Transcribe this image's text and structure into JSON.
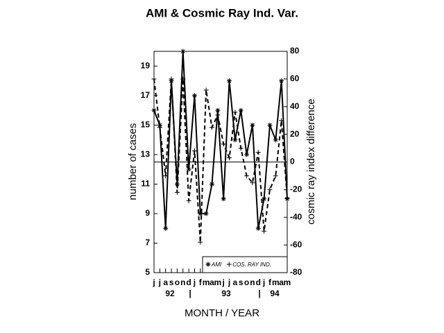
{
  "chart_data": {
    "type": "line",
    "title": "AMI & Cosmic Ray Ind. Var.",
    "x_label": "MONTH / YEAR",
    "y_label": "number of cases",
    "y2_label": "cosmic ray index difference",
    "categories": [
      "j",
      "j",
      "a",
      "s",
      "o",
      "n",
      "d",
      "j",
      "f",
      "m",
      "a",
      "m",
      "j",
      "j",
      "a",
      "s",
      "o",
      "n",
      "d",
      "j",
      "f",
      "m",
      "a",
      "m"
    ],
    "year_labels": [
      "92",
      "93",
      "94"
    ],
    "series": [
      {
        "name": "AMI",
        "color": "#000000",
        "dash": false,
        "marker": "star",
        "values": [
          16,
          15,
          8,
          18,
          11,
          20,
          12,
          17,
          9,
          9,
          11,
          16,
          10,
          18,
          14,
          16,
          13,
          15,
          8,
          10,
          15,
          14,
          18,
          10
        ]
      },
      {
        "name": "COS. RAY IND.",
        "color": "#000000",
        "dash": true,
        "marker": "plus",
        "axis": "y2",
        "values": [
          60,
          25,
          -10,
          60,
          -22,
          60,
          -28,
          8,
          -58,
          52,
          25,
          34,
          13,
          3,
          36,
          10,
          -10,
          -15,
          7,
          -50,
          -20,
          -10,
          30,
          -26
        ]
      }
    ],
    "ylim": [
      5,
      20
    ],
    "yticks": [
      5,
      7,
      9,
      11,
      13,
      15,
      17,
      19
    ],
    "y2lim": [
      -80,
      80
    ],
    "y2ticks": [
      -80,
      -60,
      -40,
      -20,
      0,
      20,
      40,
      60,
      80
    ]
  }
}
